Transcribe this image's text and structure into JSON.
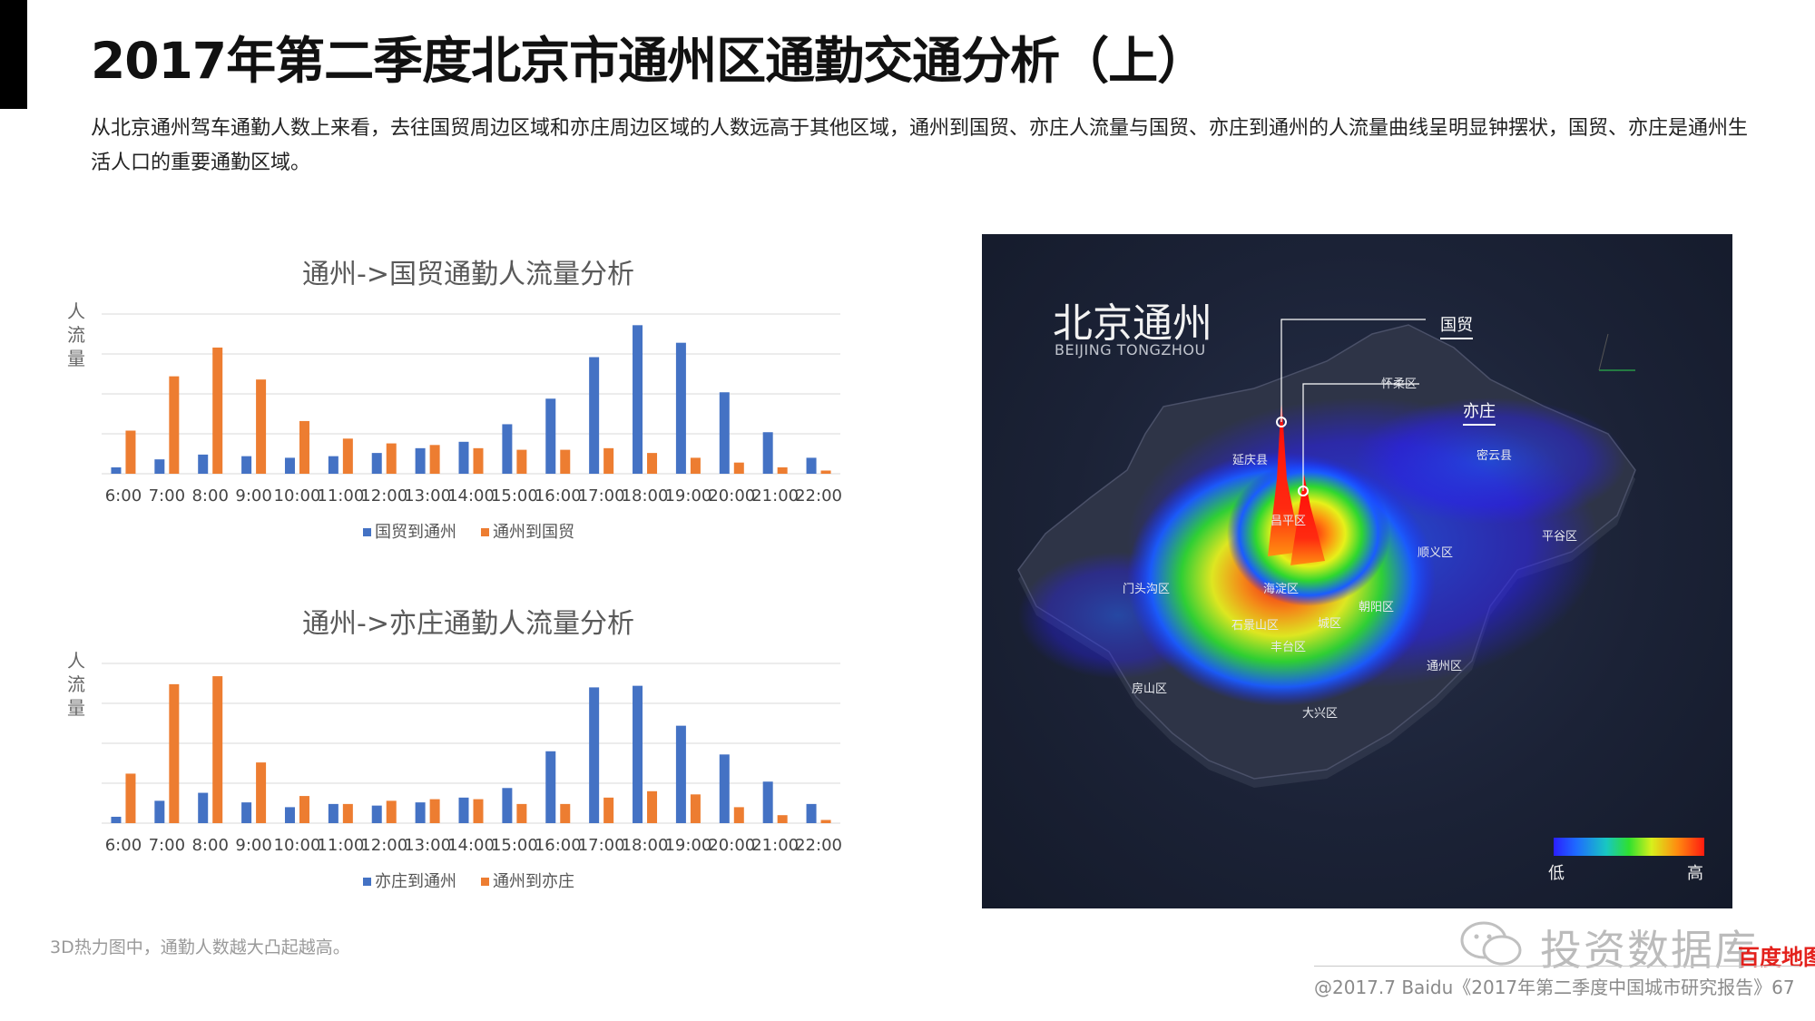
{
  "page": {
    "title": "2017年第二季度北京市通州区通勤交通分析（上）",
    "description": "从北京通州驾车通勤人数上来看，去往国贸周边区域和亦庄周边区域的人数远高于其他区域，通州到国贸、亦庄人流量与国贸、亦庄到通州的人流量曲线呈明显钟摆状，国贸、亦庄是通州生活人口的重要通勤区域。",
    "footnote": "3D热力图中，通勤人数越大凸起越高。",
    "source": "@2017.7 Baidu《2017年第二季度中国城市研究报告》67",
    "watermark": "投资数据库",
    "watermark_brand": "百度地图"
  },
  "map": {
    "title_cn": "北京通州",
    "title_en": "BEIJING TONGZHOU",
    "callouts": [
      "国贸",
      "亦庄"
    ],
    "districts": [
      "怀柔区",
      "延庆县",
      "密云县",
      "昌平区",
      "顺义区",
      "平谷区",
      "门头沟区",
      "海淀区",
      "朝阳区",
      "石景山区",
      "城区",
      "丰台区",
      "通州区",
      "房山区",
      "大兴区"
    ],
    "legend_low": "低",
    "legend_high": "高",
    "colors": {
      "background": "#1b2236",
      "low": "#2a1fff",
      "mid": "#2fe02f",
      "high": "#ff1b10"
    }
  },
  "chart_data": [
    {
      "type": "bar",
      "title": "通州->国贸通勤人流量分析",
      "ylabel": "人流量",
      "categories": [
        "6:00",
        "7:00",
        "8:00",
        "9:00",
        "10:00",
        "11:00",
        "12:00",
        "13:00",
        "14:00",
        "15:00",
        "16:00",
        "17:00",
        "18:00",
        "19:00",
        "20:00",
        "21:00",
        "22:00"
      ],
      "series": [
        {
          "name": "国贸到通州",
          "color": "#4472c4",
          "values": [
            4,
            9,
            12,
            11,
            10,
            11,
            13,
            16,
            20,
            31,
            47,
            73,
            93,
            82,
            51,
            26,
            10
          ]
        },
        {
          "name": "通州到国贸",
          "color": "#ed7d31",
          "values": [
            27,
            61,
            79,
            59,
            33,
            22,
            19,
            18,
            16,
            15,
            15,
            16,
            13,
            10,
            7,
            4,
            2
          ]
        }
      ],
      "ylim": [
        0,
        100
      ],
      "grid": true,
      "legend": "bottom"
    },
    {
      "type": "bar",
      "title": "通州->亦庄通勤人流量分析",
      "ylabel": "人流量",
      "categories": [
        "6:00",
        "7:00",
        "8:00",
        "9:00",
        "10:00",
        "11:00",
        "12:00",
        "13:00",
        "14:00",
        "15:00",
        "16:00",
        "17:00",
        "18:00",
        "19:00",
        "20:00",
        "21:00",
        "22:00"
      ],
      "series": [
        {
          "name": "亦庄到通州",
          "color": "#4472c4",
          "values": [
            4,
            14,
            19,
            13,
            10,
            12,
            11,
            13,
            16,
            22,
            45,
            85,
            86,
            61,
            43,
            26,
            12
          ]
        },
        {
          "name": "通州到亦庄",
          "color": "#ed7d31",
          "values": [
            31,
            87,
            92,
            38,
            17,
            12,
            14,
            15,
            15,
            12,
            12,
            16,
            20,
            18,
            10,
            5,
            2
          ]
        }
      ],
      "ylim": [
        0,
        100
      ],
      "grid": true,
      "legend": "bottom"
    }
  ]
}
